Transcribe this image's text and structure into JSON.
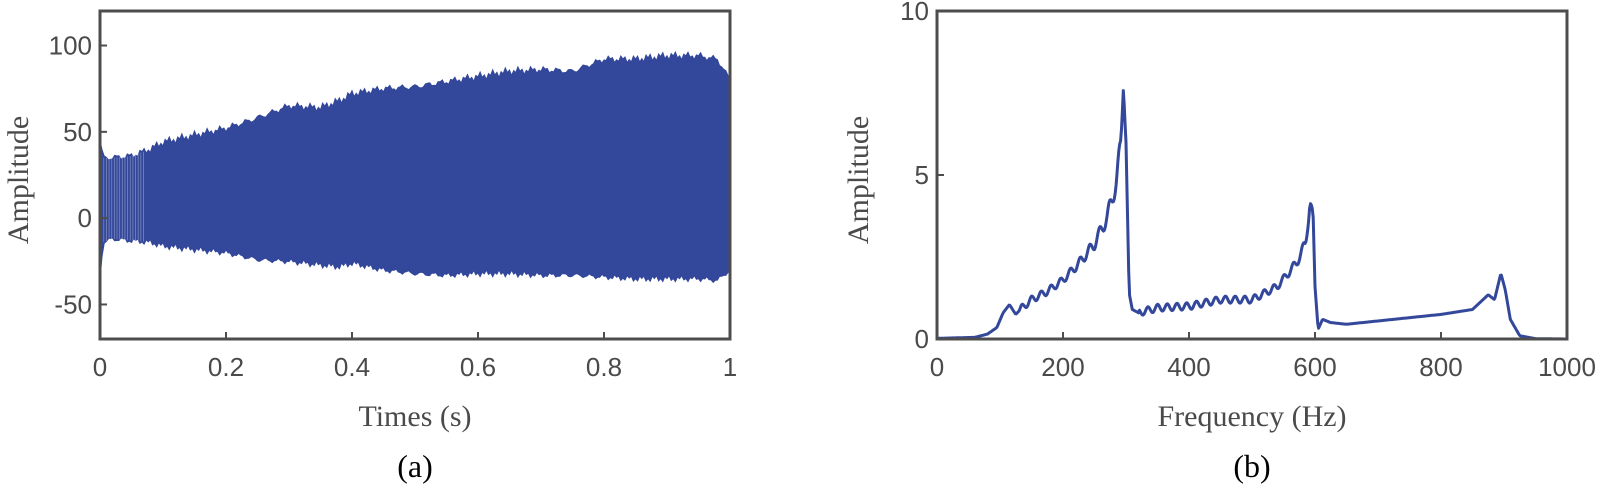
{
  "chart_data": [
    {
      "type": "area",
      "caption": "(a)",
      "xlabel": "Times (s)",
      "ylabel": "Amplitude",
      "xlim": [
        0,
        1
      ],
      "ylim": [
        -70,
        120
      ],
      "xticks": [
        0,
        0.2,
        0.4,
        0.6,
        0.8,
        1
      ],
      "xtick_labels": [
        "0",
        "0.2",
        "0.4",
        "0.6",
        "0.8",
        "1"
      ],
      "yticks": [
        -50,
        0,
        50,
        100
      ],
      "ytick_labels": [
        "-50",
        "0",
        "50",
        "100"
      ],
      "color": "#33479b",
      "series": [
        {
          "x": [
            0.0,
            0.005,
            0.02,
            0.05,
            0.08,
            0.1,
            0.15,
            0.2,
            0.25,
            0.3,
            0.35,
            0.38,
            0.4,
            0.45,
            0.5,
            0.55,
            0.6,
            0.65,
            0.7,
            0.75,
            0.8,
            0.85,
            0.9,
            0.95,
            0.98,
            1.0
          ],
          "upper": [
            45,
            35,
            35,
            36,
            40,
            44,
            48,
            52,
            58,
            65,
            64,
            68,
            72,
            75,
            76,
            79,
            82,
            85,
            86,
            85,
            92,
            92,
            94,
            94,
            92,
            80
          ],
          "lower": [
            -35,
            -14,
            -12,
            -13,
            -14,
            -16,
            -18,
            -20,
            -24,
            -25,
            -27,
            -28,
            -26,
            -30,
            -32,
            -33,
            -32,
            -32,
            -33,
            -33,
            -34,
            -35,
            -35,
            -35,
            -36,
            -30
          ]
        }
      ]
    },
    {
      "type": "line",
      "caption": "(b)",
      "xlabel": "Frequency (Hz)",
      "ylabel": "Amplitude",
      "xlim": [
        0,
        1000
      ],
      "ylim": [
        0,
        10
      ],
      "xticks": [
        0,
        200,
        400,
        600,
        800,
        1000
      ],
      "xtick_labels": [
        "0",
        "200",
        "400",
        "600",
        "800",
        "1000"
      ],
      "yticks": [
        0,
        5,
        10
      ],
      "ytick_labels": [
        "0",
        "5",
        "10"
      ],
      "color": "#33479b",
      "series": [
        {
          "x": [
            0,
            60,
            80,
            95,
            105,
            115,
            125,
            135,
            150,
            175,
            200,
            225,
            250,
            270,
            285,
            292,
            296,
            300,
            305,
            310,
            320,
            350,
            400,
            450,
            500,
            540,
            570,
            585,
            592,
            597,
            600,
            605,
            612,
            625,
            650,
            700,
            750,
            800,
            850,
            875,
            885,
            895,
            902,
            910,
            925,
            950,
            1000
          ],
          "y": [
            0.02,
            0.05,
            0.15,
            0.35,
            0.8,
            1.05,
            0.75,
            0.95,
            1.2,
            1.45,
            1.8,
            2.3,
            2.9,
            3.7,
            4.8,
            6.0,
            8.2,
            6.0,
            1.4,
            0.9,
            0.8,
            0.95,
            1.0,
            1.2,
            1.2,
            1.6,
            2.3,
            2.9,
            4.2,
            3.6,
            1.6,
            0.3,
            0.6,
            0.5,
            0.45,
            0.55,
            0.65,
            0.75,
            0.9,
            1.35,
            1.2,
            2.0,
            1.5,
            0.6,
            0.1,
            0.01,
            0.0
          ]
        }
      ]
    }
  ]
}
